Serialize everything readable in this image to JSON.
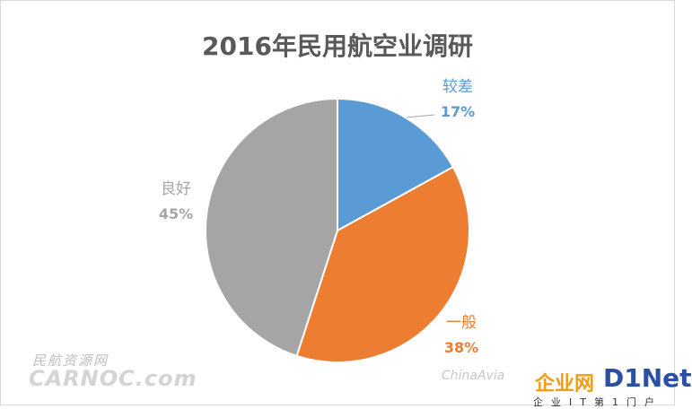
{
  "chart_data": {
    "type": "pie",
    "title": "2016年民用航空业调研",
    "slices": [
      {
        "label": "较差",
        "value": 17,
        "value_label": "17%",
        "color": "#5b9bd5"
      },
      {
        "label": "一般",
        "value": 38,
        "value_label": "38%",
        "color": "#ed7d31"
      },
      {
        "label": "良好",
        "value": 45,
        "value_label": "45%",
        "color": "#a5a5a5"
      }
    ],
    "start_angle": "12 o'clock",
    "direction": "clockwise",
    "legend": "none"
  },
  "watermarks": {
    "carnoc_cn": "民航资源网",
    "carnoc_en": "CARNOC.com",
    "chinaavia": "ChinaAvia",
    "qiye": "企业网",
    "dnet": "D1Net",
    "dnet_sub": "企业IT第1门户"
  }
}
